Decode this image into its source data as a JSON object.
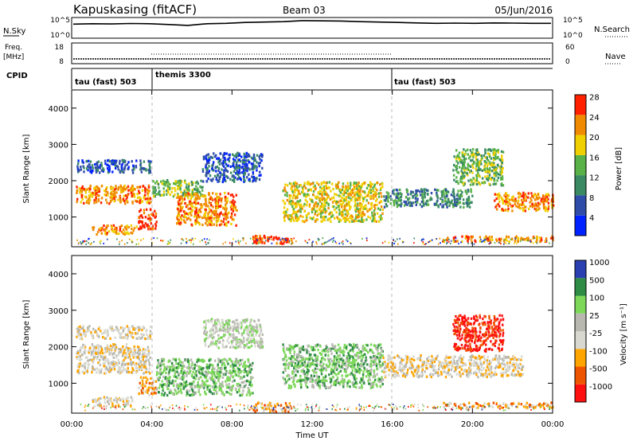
{
  "header": {
    "station": "Kapuskasing (fitACF)",
    "beam": "Beam 03",
    "date": "05/Jun/2016"
  },
  "chart_data": [
    {
      "id": "noise",
      "type": "line",
      "left_label": "N.Sky",
      "right_label": "N.Search",
      "left_ticks": [
        "10^5",
        "10^0"
      ],
      "right_ticks": [
        "10^5",
        "10^0"
      ],
      "series": [
        {
          "values": [
            0.68,
            0.7,
            0.69,
            0.71,
            0.7,
            0.66,
            0.62,
            0.7,
            0.72,
            0.76,
            0.78,
            0.8,
            0.85,
            0.84,
            0.83,
            0.8,
            0.78,
            0.76,
            0.74,
            0.72,
            0.73,
            0.72,
            0.74,
            0.73,
            0.72,
            0.72
          ]
        }
      ]
    },
    {
      "id": "freq",
      "type": "line",
      "left_label": "Freq.",
      "left_unit": "[MHz]",
      "right_label": "Nave",
      "left_ticks": [
        "18",
        "8"
      ],
      "right_ticks": [
        "60",
        "0"
      ]
    },
    {
      "id": "cpid",
      "type": "table",
      "label": "CPID",
      "segments": [
        {
          "name": "tau (fast) 503",
          "start": 0,
          "end": 4
        },
        {
          "name": "themis 3300",
          "start": 4,
          "end": 16
        },
        {
          "name": "tau (fast) 503",
          "start": 16,
          "end": 24
        }
      ]
    },
    {
      "id": "power",
      "type": "heatmap",
      "ylabel": "Slant Range [km]",
      "yticks": [
        1000,
        2000,
        3000,
        4000
      ],
      "ylim": [
        180,
        4500
      ],
      "cbar_label": "Power [dB]",
      "cbar_ticks": [
        "4",
        "8",
        "12",
        "16",
        "20",
        "24",
        "28"
      ],
      "cbar_colors": [
        "#0022ff",
        "#2f4da8",
        "#3a8a64",
        "#58b247",
        "#f0d000",
        "#f08a00",
        "#ff2000"
      ],
      "ranges": [
        {
          "x0": 0.2,
          "x1": 3.9,
          "y0": 1400,
          "y1": 1900,
          "level": 5
        },
        {
          "x0": 0.2,
          "x1": 3.9,
          "y0": 2250,
          "y1": 2600,
          "level": 1
        },
        {
          "x0": 1.0,
          "x1": 3.2,
          "y0": 550,
          "y1": 800,
          "level": 5
        },
        {
          "x0": 3.3,
          "x1": 4.2,
          "y0": 700,
          "y1": 1250,
          "level": 6
        },
        {
          "x0": 4.0,
          "x1": 6.5,
          "y0": 1600,
          "y1": 2050,
          "level": 3
        },
        {
          "x0": 5.2,
          "x1": 8.2,
          "y0": 800,
          "y1": 1700,
          "level": 5
        },
        {
          "x0": 6.5,
          "x1": 9.5,
          "y0": 2000,
          "y1": 2800,
          "level": 1
        },
        {
          "x0": 9.0,
          "x1": 11.0,
          "y0": 280,
          "y1": 520,
          "level": 6
        },
        {
          "x0": 10.5,
          "x1": 15.5,
          "y0": 900,
          "y1": 2000,
          "level": 4
        },
        {
          "x0": 15.5,
          "x1": 20.0,
          "y0": 1300,
          "y1": 1800,
          "level": 2
        },
        {
          "x0": 19.0,
          "x1": 21.5,
          "y0": 1900,
          "y1": 2900,
          "level": 3
        },
        {
          "x0": 21.0,
          "x1": 24.0,
          "y0": 1200,
          "y1": 1700,
          "level": 5
        },
        {
          "x0": 18.5,
          "x1": 24.0,
          "y0": 350,
          "y1": 500,
          "level": 5
        }
      ]
    },
    {
      "id": "velocity",
      "type": "heatmap",
      "ylabel": "Slant Range [km]",
      "yticks": [
        1000,
        2000,
        3000,
        4000
      ],
      "ylim": [
        180,
        4500
      ],
      "cbar_label": "Velocity [m s⁻¹]",
      "cbar_ticks": [
        "-1000",
        "-500",
        "-100",
        "-25",
        "25",
        "100",
        "500",
        "1000"
      ],
      "cbar_colors": [
        "#ff1010",
        "#ee5500",
        "#ffa500",
        "#d8d8d0",
        "#b8b8b0",
        "#7dd85a",
        "#2e8c45",
        "#2a3fb0"
      ],
      "ranges": [
        {
          "x0": 0.2,
          "x1": 3.9,
          "y0": 1300,
          "y1": 2100,
          "level": 3
        },
        {
          "x0": 0.2,
          "x1": 3.9,
          "y0": 2250,
          "y1": 2600,
          "level": 3
        },
        {
          "x0": 1.0,
          "x1": 3.0,
          "y0": 400,
          "y1": 650,
          "level": 3
        },
        {
          "x0": 3.3,
          "x1": 4.2,
          "y0": 700,
          "y1": 1200,
          "level": 2
        },
        {
          "x0": 4.2,
          "x1": 9.0,
          "y0": 700,
          "y1": 1700,
          "level": 5
        },
        {
          "x0": 6.5,
          "x1": 9.5,
          "y0": 2000,
          "y1": 2800,
          "level": 4
        },
        {
          "x0": 9.0,
          "x1": 11.0,
          "y0": 250,
          "y1": 500,
          "level": 2
        },
        {
          "x0": 10.5,
          "x1": 15.5,
          "y0": 900,
          "y1": 2100,
          "level": 5
        },
        {
          "x0": 15.5,
          "x1": 22.5,
          "y0": 1200,
          "y1": 1800,
          "level": 3
        },
        {
          "x0": 19.0,
          "x1": 21.5,
          "y0": 1900,
          "y1": 2900,
          "level": 0
        },
        {
          "x0": 18.5,
          "x1": 24.0,
          "y0": 350,
          "y1": 500,
          "level": 2
        }
      ]
    }
  ],
  "xaxis": {
    "label": "Time UT",
    "ticks": [
      "00:00",
      "04:00",
      "08:00",
      "12:00",
      "16:00",
      "20:00",
      "00:00"
    ]
  }
}
